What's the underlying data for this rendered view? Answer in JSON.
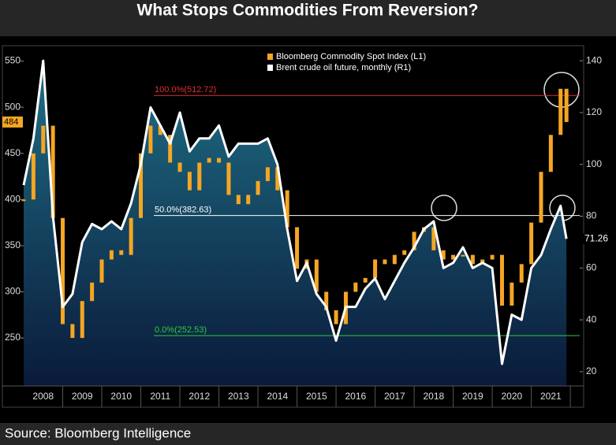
{
  "chart_data": {
    "type": "candle-line",
    "title": "What Stops Commodities From Reversion?",
    "source": "Source: Bloomberg Intelligence",
    "x": [
      2008.0,
      2008.25,
      2008.5,
      2008.75,
      2009.0,
      2009.25,
      2009.5,
      2009.75,
      2010.0,
      2010.25,
      2010.5,
      2010.75,
      2011.0,
      2011.25,
      2011.5,
      2011.75,
      2012.0,
      2012.25,
      2012.5,
      2012.75,
      2013.0,
      2013.25,
      2013.5,
      2013.75,
      2014.0,
      2014.25,
      2014.5,
      2014.75,
      2015.0,
      2015.25,
      2015.5,
      2015.75,
      2016.0,
      2016.25,
      2016.5,
      2016.75,
      2017.0,
      2017.25,
      2017.5,
      2017.75,
      2018.0,
      2018.25,
      2018.5,
      2018.75,
      2019.0,
      2019.25,
      2019.5,
      2019.75,
      2020.0,
      2020.25,
      2020.5,
      2020.75,
      2021.0,
      2021.25,
      2021.5,
      2021.75,
      2021.9
    ],
    "series": [
      {
        "name": "Bloomberg Commodity Spot Index  (L1)",
        "color": "#f5a623",
        "last_label": "484",
        "values": [
          400,
          450,
          480,
          380,
          265,
          250,
          290,
          310,
          335,
          345,
          340,
          380,
          450,
          480,
          470,
          440,
          430,
          410,
          440,
          445,
          440,
          405,
          395,
          405,
          420,
          435,
          410,
          370,
          325,
          335,
          300,
          280,
          265,
          300,
          310,
          315,
          335,
          330,
          340,
          345,
          365,
          370,
          345,
          335,
          340,
          340,
          330,
          335,
          340,
          285,
          310,
          330,
          375,
          430,
          470,
          520,
          484
        ]
      },
      {
        "name": "Brent crude oil future, monthly (R1)",
        "color": "#ffffff",
        "axis": "y2",
        "last_label": "71.26",
        "values": [
          92,
          110,
          140,
          80,
          45,
          50,
          70,
          77,
          75,
          78,
          75,
          85,
          100,
          122,
          115,
          108,
          120,
          105,
          110,
          110,
          115,
          103,
          108,
          108,
          108,
          110,
          100,
          75,
          55,
          62,
          50,
          45,
          32,
          45,
          45,
          52,
          56,
          48,
          55,
          62,
          68,
          75,
          78,
          60,
          62,
          68,
          60,
          62,
          60,
          23,
          42,
          40,
          60,
          65,
          75,
          84,
          71.26
        ]
      }
    ],
    "hlines": [
      {
        "label": "100.0%(512.72)",
        "value": 512.72,
        "color": "#e03030"
      },
      {
        "label": "50.0%(382.63)",
        "value": 382.63,
        "color": "#ffffff"
      },
      {
        "label": "0.0%(252.53)",
        "value": 252.53,
        "color": "#2ecc40"
      }
    ],
    "xlim": [
      2008,
      2022.24
    ],
    "xticks": [
      {
        "value": 2008.5,
        "label": "2008"
      },
      {
        "value": 2009.5,
        "label": "2009"
      },
      {
        "value": 2010.5,
        "label": "2010"
      },
      {
        "value": 2011.5,
        "label": "2011"
      },
      {
        "value": 2012.5,
        "label": "2012"
      },
      {
        "value": 2013.5,
        "label": "2013"
      },
      {
        "value": 2014.5,
        "label": "2014"
      },
      {
        "value": 2015.5,
        "label": "2015"
      },
      {
        "value": 2016.5,
        "label": "2016"
      },
      {
        "value": 2017.5,
        "label": "2017"
      },
      {
        "value": 2018.5,
        "label": "2018"
      },
      {
        "value": 2019.5,
        "label": "2019"
      },
      {
        "value": 2020.5,
        "label": "2020"
      },
      {
        "value": 2021.5,
        "label": "2021"
      }
    ],
    "ylim": [
      198,
      565
    ],
    "yticks": [
      250,
      300,
      350,
      400,
      450,
      500,
      550
    ],
    "y2lim": [
      14.5,
      145.2
    ],
    "y2ticks": [
      20,
      40,
      60,
      80,
      100,
      120,
      140
    ]
  }
}
